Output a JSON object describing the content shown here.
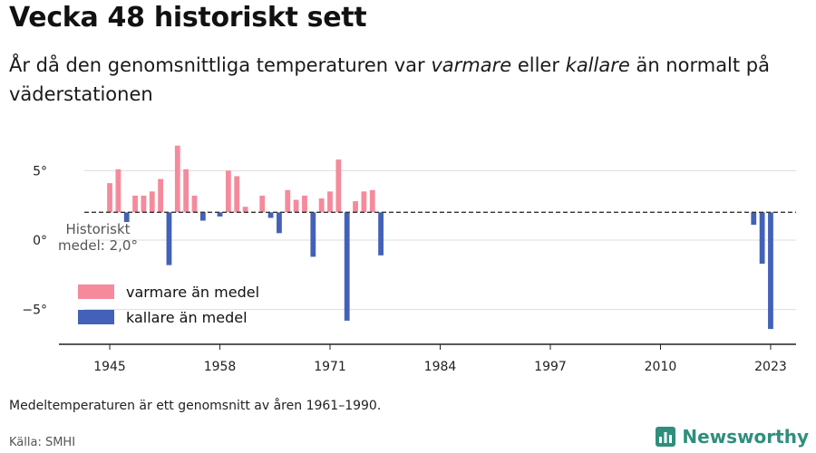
{
  "header": {
    "title": "Vecka 48 historiskt sett",
    "subtitle_parts": [
      {
        "text": "År då den genomsnittliga temperaturen var ",
        "italic": false
      },
      {
        "text": "varmare",
        "italic": true
      },
      {
        "text": " eller ",
        "italic": false
      },
      {
        "text": "kallare",
        "italic": true
      },
      {
        "text": " än normalt på väderstationen",
        "italic": false
      }
    ]
  },
  "chart_data": {
    "type": "bar",
    "baseline": 2.0,
    "baseline_label": [
      "Historiskt",
      "medel: 2,0°"
    ],
    "xlim": [
      1942,
      2026
    ],
    "ylim": [
      -7.5,
      7.5
    ],
    "x_ticks": [
      1945,
      1958,
      1971,
      1984,
      1997,
      2010,
      2023
    ],
    "x_tick_labels": [
      "1945",
      "1958",
      "1971",
      "1984",
      "1997",
      "2010",
      "2023"
    ],
    "y_ticks": [
      5,
      0,
      -5
    ],
    "y_tick_labels": [
      "5°",
      "0°",
      "−5°"
    ],
    "colors": {
      "warmer": "#f58a9c",
      "colder": "#4361b8",
      "baseline": "#333333",
      "grid": "#dddddd"
    },
    "legend": {
      "warmer_label": "varmare än medel",
      "colder_label": "kallare än medel",
      "position": "left-bottom"
    },
    "x": [
      1945,
      1946,
      1947,
      1948,
      1949,
      1950,
      1951,
      1952,
      1953,
      1954,
      1955,
      1956,
      1957,
      1958,
      1959,
      1960,
      1961,
      1962,
      1963,
      1964,
      1965,
      1966,
      1967,
      1968,
      1969,
      1970,
      1971,
      1972,
      1973,
      1974,
      1975,
      1976,
      1977,
      1978,
      2021,
      2022,
      2023
    ],
    "values": [
      4.1,
      5.1,
      1.3,
      3.2,
      3.2,
      3.5,
      4.4,
      -1.8,
      6.8,
      5.1,
      3.2,
      1.4,
      null,
      1.7,
      5.0,
      4.6,
      2.4,
      null,
      3.2,
      1.6,
      0.5,
      3.6,
      2.9,
      3.2,
      -1.2,
      3.0,
      3.5,
      5.8,
      -5.8,
      2.8,
      3.5,
      3.6,
      -1.1,
      null,
      1.1,
      -1.7,
      -6.4
    ]
  },
  "footer": {
    "note": "Medeltemperaturen är ett genomsnitt av åren 1961–1990.",
    "source": "Källa: SMHI",
    "brand": "Newsworthy",
    "brand_icon": "newsworthy-logo-icon",
    "brand_color": "#2f8f7c"
  }
}
